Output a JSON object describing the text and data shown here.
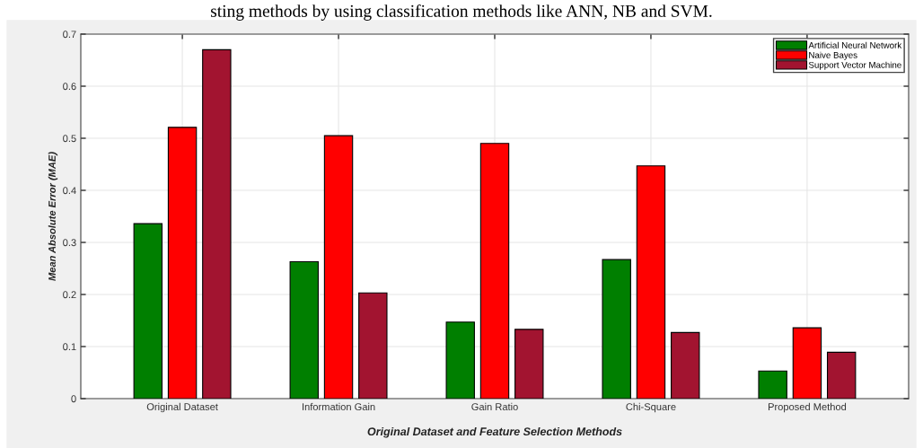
{
  "chart_data": {
    "type": "bar",
    "xlabel": "Original Dataset and Feature Selection Methods",
    "ylabel": "Mean Absolute Error (MAE)",
    "annotations": [
      "sting methods by using classification methods like ANN, NB and SVM."
    ],
    "categories": [
      "Original Dataset",
      "Information Gain",
      "Gain Ratio",
      "Chi-Square",
      "Proposed Method"
    ],
    "series": [
      {
        "name": "Artificial Neural Network",
        "color": "#007f00",
        "values": [
          0.336,
          0.263,
          0.147,
          0.267,
          0.053
        ]
      },
      {
        "name": "Naive Bayes",
        "color": "#ff0000",
        "values": [
          0.521,
          0.505,
          0.49,
          0.447,
          0.136
        ]
      },
      {
        "name": "Support Vector Machine",
        "color": "#a21430",
        "values": [
          0.67,
          0.203,
          0.133,
          0.127,
          0.089
        ]
      }
    ],
    "ylim": [
      0,
      0.7
    ],
    "yticks": [
      0,
      0.1,
      0.2,
      0.3,
      0.4,
      0.5,
      0.6,
      0.7
    ],
    "grid": true,
    "legend": "top right"
  }
}
